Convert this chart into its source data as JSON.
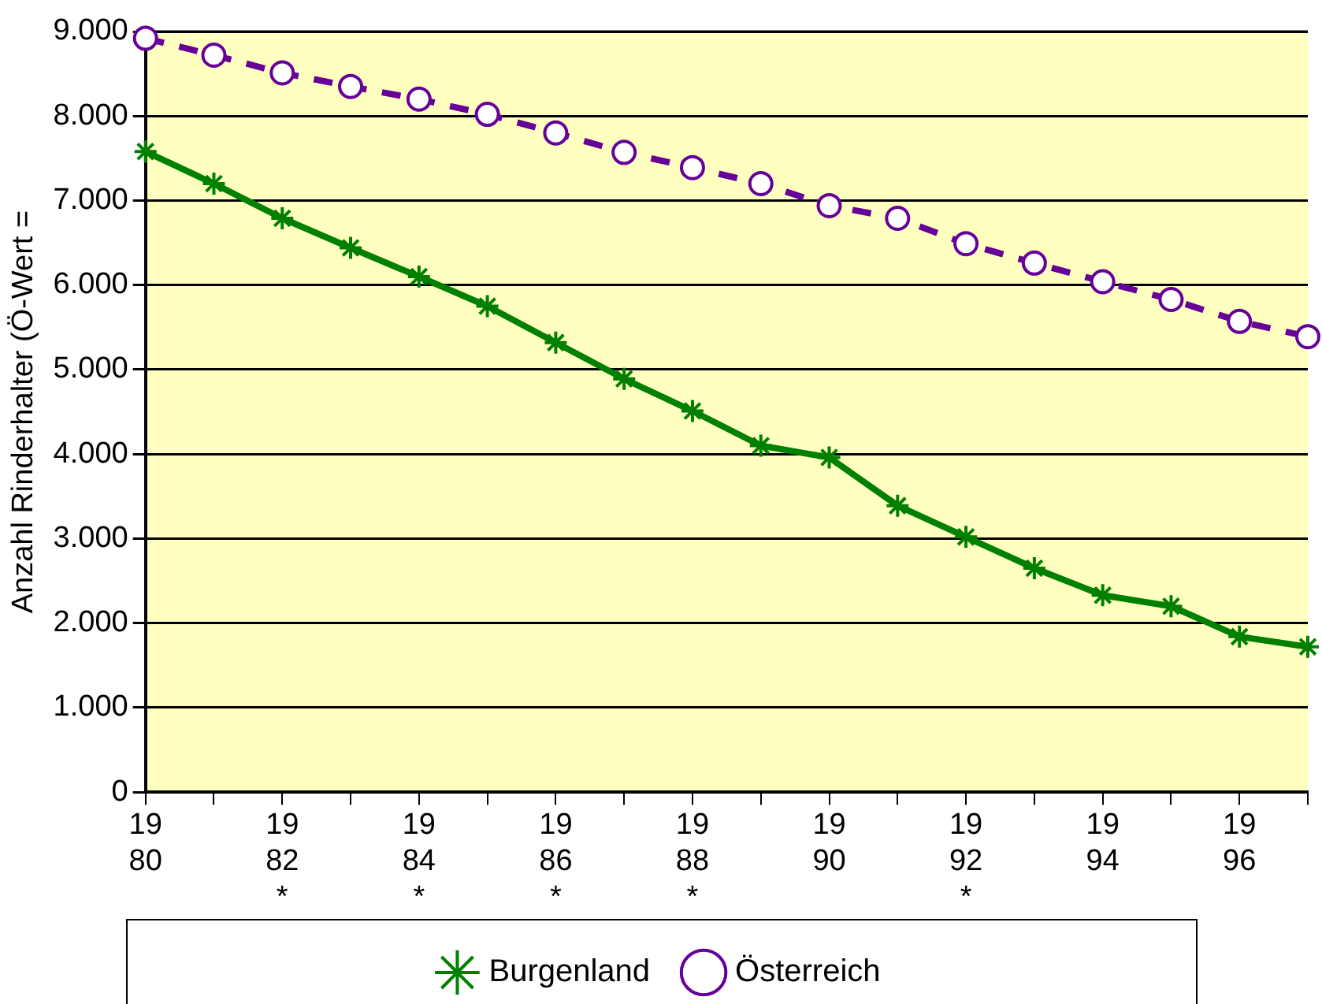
{
  "chart_data": {
    "type": "line",
    "ylabel": "Anzahl Rinderhalter (Ö-Wert =",
    "categories": [
      "1980",
      null,
      "1982*",
      null,
      "1984*",
      null,
      "1986*",
      null,
      "1988*",
      null,
      "1990",
      null,
      "1992*",
      null,
      "1994",
      null,
      "1996",
      null
    ],
    "series": [
      {
        "name": "Burgenland",
        "color": "#008000",
        "marker": "cross",
        "line_style": "solid",
        "values": [
          7580,
          7200,
          6790,
          6440,
          6100,
          5750,
          5320,
          4890,
          4510,
          4100,
          3960,
          3390,
          3020,
          2650,
          2330,
          2200,
          1840,
          1720
        ]
      },
      {
        "name": "Österreich",
        "color": "#660099",
        "marker": "circle",
        "line_style": "dashed",
        "values": [
          8920,
          8720,
          8510,
          8350,
          8200,
          8020,
          7800,
          7570,
          7390,
          7200,
          6940,
          6790,
          6490,
          6260,
          6040,
          5830,
          5570,
          5390
        ]
      }
    ],
    "ylim": [
      0,
      9000
    ],
    "yticks": [
      {
        "value": 0,
        "label": "0"
      },
      {
        "value": 1000,
        "label": "1.000"
      },
      {
        "value": 2000,
        "label": "2.000"
      },
      {
        "value": 3000,
        "label": "3.000"
      },
      {
        "value": 4000,
        "label": "4.000"
      },
      {
        "value": 5000,
        "label": "5.000"
      },
      {
        "value": 6000,
        "label": "6.000"
      },
      {
        "value": 7000,
        "label": "7.000"
      },
      {
        "value": 8000,
        "label": "8.000"
      },
      {
        "value": 9000,
        "label": "9.000"
      }
    ],
    "grid": "y",
    "legend": "bottom"
  }
}
